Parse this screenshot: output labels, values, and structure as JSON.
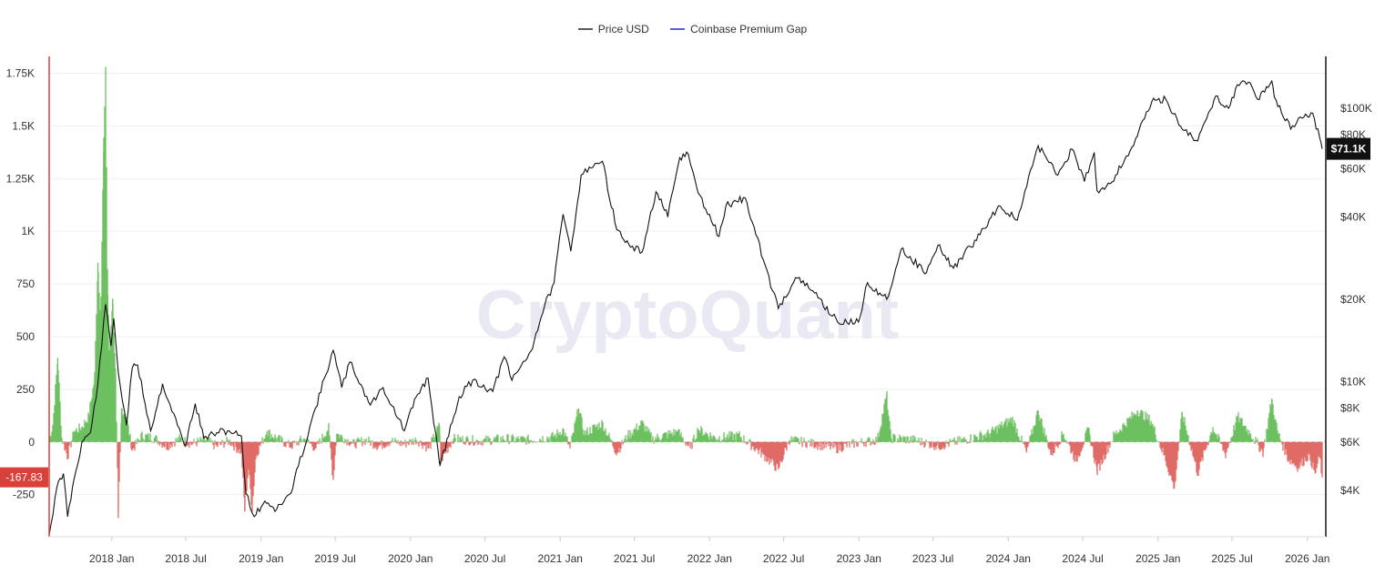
{
  "legend": {
    "items": [
      {
        "label": "Price USD",
        "color": "#555a6e"
      },
      {
        "label": "Coinbase Premium Gap",
        "color": "#5b5fd6"
      }
    ]
  },
  "watermark": "CryptoQuant",
  "colors": {
    "price_line": "#111111",
    "premium_positive": "#6cc05f",
    "premium_negative": "#e06b66",
    "left_axis": "#d9403a",
    "right_axis": "#111111",
    "grid": "#efefef"
  },
  "chart_data": {
    "type": "line",
    "left_axis": {
      "title": "",
      "ticks": [
        -250,
        0,
        250,
        500,
        750,
        1000,
        1250,
        1500,
        1750
      ],
      "tick_labels": [
        "-250",
        "0",
        "250",
        "500",
        "750",
        "1K",
        "1.25K",
        "1.5K",
        "1.75K"
      ],
      "ylim": [
        -450,
        1830
      ]
    },
    "right_axis": {
      "title": "",
      "scale": "log",
      "ticks": [
        4000,
        6000,
        8000,
        10000,
        20000,
        40000,
        60000,
        80000,
        100000
      ],
      "tick_labels": [
        "$4K",
        "$6K",
        "$8K",
        "$10K",
        "$20K",
        "$40K",
        "$60K",
        "$80K",
        "$100K"
      ],
      "ylim": [
        2700,
        155000
      ]
    },
    "x_axis": {
      "range": [
        "2017-08-01",
        "2026-02-15"
      ],
      "ticks": [
        "2018-01-01",
        "2018-07-01",
        "2019-01-01",
        "2019-07-01",
        "2020-01-01",
        "2020-07-01",
        "2021-01-01",
        "2021-07-01",
        "2022-01-01",
        "2022-07-01",
        "2023-01-01",
        "2023-07-01",
        "2024-01-01",
        "2024-07-01",
        "2025-01-01",
        "2025-07-01",
        "2026-01-01"
      ],
      "tick_labels": [
        "2018 Jan",
        "2018 Jul",
        "2019 Jan",
        "2019 Jul",
        "2020 Jan",
        "2020 Jul",
        "2021 Jan",
        "2021 Jul",
        "2022 Jan",
        "2022 Jul",
        "2023 Jan",
        "2023 Jul",
        "2024 Jan",
        "2024 Jul",
        "2025 Jan",
        "2025 Jul",
        "2026 Jan"
      ]
    },
    "current_values": {
      "premium_gap_label": "-167.83",
      "premium_gap": -167.83,
      "price_label": "$71.1K",
      "price": 71100
    },
    "series": [
      {
        "name": "Price USD",
        "axis": "right",
        "points": [
          [
            "2017-08-01",
            2750
          ],
          [
            "2017-08-20",
            4100
          ],
          [
            "2017-09-05",
            4600
          ],
          [
            "2017-09-15",
            3200
          ],
          [
            "2017-10-01",
            4400
          ],
          [
            "2017-10-20",
            6000
          ],
          [
            "2017-11-10",
            6500
          ],
          [
            "2017-11-28",
            9800
          ],
          [
            "2017-12-17",
            19200
          ],
          [
            "2017-12-30",
            13500
          ],
          [
            "2018-01-06",
            17000
          ],
          [
            "2018-01-17",
            10800
          ],
          [
            "2018-02-06",
            6900
          ],
          [
            "2018-02-20",
            11200
          ],
          [
            "2018-03-05",
            11500
          ],
          [
            "2018-04-06",
            6600
          ],
          [
            "2018-05-05",
            9800
          ],
          [
            "2018-06-29",
            5800
          ],
          [
            "2018-07-24",
            8300
          ],
          [
            "2018-08-14",
            6200
          ],
          [
            "2018-09-15",
            6500
          ],
          [
            "2018-10-15",
            6600
          ],
          [
            "2018-11-14",
            6300
          ],
          [
            "2018-11-25",
            3900
          ],
          [
            "2018-12-15",
            3200
          ],
          [
            "2019-01-10",
            3650
          ],
          [
            "2019-02-08",
            3400
          ],
          [
            "2019-03-15",
            3900
          ],
          [
            "2019-04-02",
            4900
          ],
          [
            "2019-05-14",
            8000
          ],
          [
            "2019-06-26",
            13000
          ],
          [
            "2019-07-17",
            9500
          ],
          [
            "2019-08-06",
            11800
          ],
          [
            "2019-09-25",
            8200
          ],
          [
            "2019-10-26",
            9500
          ],
          [
            "2019-12-17",
            6600
          ],
          [
            "2020-01-15",
            8800
          ],
          [
            "2020-02-13",
            10300
          ],
          [
            "2020-03-12",
            5000
          ],
          [
            "2020-03-13",
            4900
          ],
          [
            "2020-04-29",
            8800
          ],
          [
            "2020-06-01",
            10100
          ],
          [
            "2020-07-20",
            9200
          ],
          [
            "2020-08-17",
            12300
          ],
          [
            "2020-09-05",
            10100
          ],
          [
            "2020-10-21",
            12900
          ],
          [
            "2020-11-24",
            19000
          ],
          [
            "2020-12-17",
            23000
          ],
          [
            "2021-01-08",
            41000
          ],
          [
            "2021-01-27",
            30000
          ],
          [
            "2021-02-21",
            57000
          ],
          [
            "2021-03-13",
            61000
          ],
          [
            "2021-04-14",
            64000
          ],
          [
            "2021-05-19",
            36000
          ],
          [
            "2021-06-22",
            31000
          ],
          [
            "2021-07-20",
            29800
          ],
          [
            "2021-08-23",
            49500
          ],
          [
            "2021-09-21",
            40000
          ],
          [
            "2021-10-20",
            66000
          ],
          [
            "2021-11-10",
            68000
          ],
          [
            "2021-12-04",
            49000
          ],
          [
            "2022-01-24",
            34000
          ],
          [
            "2022-02-10",
            44000
          ],
          [
            "2022-03-29",
            47000
          ],
          [
            "2022-05-12",
            28000
          ],
          [
            "2022-06-18",
            18500
          ],
          [
            "2022-07-30",
            24000
          ],
          [
            "2022-09-10",
            21500
          ],
          [
            "2022-11-10",
            16500
          ],
          [
            "2022-12-31",
            16500
          ],
          [
            "2023-01-22",
            23000
          ],
          [
            "2023-03-10",
            20000
          ],
          [
            "2023-04-14",
            30500
          ],
          [
            "2023-06-15",
            25000
          ],
          [
            "2023-07-13",
            31500
          ],
          [
            "2023-08-20",
            26000
          ],
          [
            "2023-10-24",
            34500
          ],
          [
            "2023-12-08",
            44000
          ],
          [
            "2024-01-23",
            39000
          ],
          [
            "2024-03-14",
            73000
          ],
          [
            "2024-05-01",
            57000
          ],
          [
            "2024-06-05",
            71000
          ],
          [
            "2024-07-05",
            54000
          ],
          [
            "2024-07-29",
            69000
          ],
          [
            "2024-08-05",
            50000
          ],
          [
            "2024-09-06",
            53000
          ],
          [
            "2024-10-29",
            72000
          ],
          [
            "2024-12-17",
            106000
          ],
          [
            "2025-01-20",
            108000
          ],
          [
            "2025-02-25",
            86000
          ],
          [
            "2025-04-08",
            76000
          ],
          [
            "2025-05-22",
            111000
          ],
          [
            "2025-06-22",
            100000
          ],
          [
            "2025-07-14",
            122000
          ],
          [
            "2025-08-14",
            124000
          ],
          [
            "2025-09-01",
            108000
          ],
          [
            "2025-10-06",
            126000
          ],
          [
            "2025-10-12",
            110000
          ],
          [
            "2025-11-21",
            84000
          ],
          [
            "2025-12-10",
            92000
          ],
          [
            "2026-01-14",
            96000
          ],
          [
            "2026-01-31",
            78000
          ],
          [
            "2026-02-06",
            71100
          ]
        ]
      },
      {
        "name": "Coinbase Premium Gap",
        "axis": "left",
        "points": [
          [
            "2017-08-01",
            10
          ],
          [
            "2017-08-10",
            80
          ],
          [
            "2017-08-22",
            400
          ],
          [
            "2017-09-01",
            20
          ],
          [
            "2017-09-15",
            -70
          ],
          [
            "2017-10-01",
            50
          ],
          [
            "2017-10-20",
            70
          ],
          [
            "2017-11-05",
            120
          ],
          [
            "2017-11-20",
            300
          ],
          [
            "2017-11-28",
            850
          ],
          [
            "2017-12-05",
            600
          ],
          [
            "2017-12-12",
            1380
          ],
          [
            "2017-12-17",
            1780
          ],
          [
            "2017-12-22",
            700
          ],
          [
            "2017-12-26",
            430
          ],
          [
            "2018-01-03",
            680
          ],
          [
            "2018-01-10",
            350
          ],
          [
            "2018-01-17",
            -360
          ],
          [
            "2018-01-25",
            160
          ],
          [
            "2018-02-06",
            120
          ],
          [
            "2018-02-20",
            -40
          ],
          [
            "2018-03-15",
            30
          ],
          [
            "2018-04-15",
            20
          ],
          [
            "2018-05-15",
            -20
          ],
          [
            "2018-06-15",
            15
          ],
          [
            "2018-07-15",
            -10
          ],
          [
            "2018-08-15",
            10
          ],
          [
            "2018-09-15",
            -20
          ],
          [
            "2018-10-15",
            5
          ],
          [
            "2018-11-14",
            -50
          ],
          [
            "2018-11-22",
            -330
          ],
          [
            "2018-12-01",
            -120
          ],
          [
            "2018-12-10",
            -320
          ],
          [
            "2018-12-20",
            -60
          ],
          [
            "2019-01-15",
            50
          ],
          [
            "2019-02-15",
            10
          ],
          [
            "2019-03-15",
            -20
          ],
          [
            "2019-04-15",
            15
          ],
          [
            "2019-05-15",
            -30
          ],
          [
            "2019-06-15",
            70
          ],
          [
            "2019-06-26",
            -180
          ],
          [
            "2019-07-05",
            40
          ],
          [
            "2019-08-15",
            -10
          ],
          [
            "2019-09-15",
            10
          ],
          [
            "2019-10-15",
            -20
          ],
          [
            "2019-11-15",
            5
          ],
          [
            "2019-12-15",
            -10
          ],
          [
            "2020-01-15",
            10
          ],
          [
            "2020-02-15",
            -30
          ],
          [
            "2020-03-12",
            80
          ],
          [
            "2020-03-15",
            -90
          ],
          [
            "2020-04-15",
            15
          ],
          [
            "2020-06-15",
            5
          ],
          [
            "2020-08-15",
            15
          ],
          [
            "2020-10-15",
            10
          ],
          [
            "2020-12-15",
            25
          ],
          [
            "2021-01-08",
            60
          ],
          [
            "2021-01-25",
            -30
          ],
          [
            "2021-02-15",
            160
          ],
          [
            "2021-03-01",
            40
          ],
          [
            "2021-04-14",
            90
          ],
          [
            "2021-05-19",
            -50
          ],
          [
            "2021-06-15",
            30
          ],
          [
            "2021-07-20",
            90
          ],
          [
            "2021-08-15",
            15
          ],
          [
            "2021-10-15",
            50
          ],
          [
            "2021-11-15",
            -30
          ],
          [
            "2021-12-04",
            60
          ],
          [
            "2022-01-15",
            20
          ],
          [
            "2022-03-15",
            30
          ],
          [
            "2022-05-12",
            -60
          ],
          [
            "2022-06-18",
            -130
          ],
          [
            "2022-07-15",
            10
          ],
          [
            "2022-09-15",
            -10
          ],
          [
            "2022-11-10",
            -30
          ],
          [
            "2022-12-15",
            -10
          ],
          [
            "2023-02-15",
            10
          ],
          [
            "2023-03-10",
            225
          ],
          [
            "2023-03-20",
            20
          ],
          [
            "2023-05-15",
            10
          ],
          [
            "2023-07-15",
            -20
          ],
          [
            "2023-09-15",
            10
          ],
          [
            "2023-11-15",
            40
          ],
          [
            "2024-01-11",
            110
          ],
          [
            "2024-02-15",
            -50
          ],
          [
            "2024-03-14",
            150
          ],
          [
            "2024-04-15",
            -60
          ],
          [
            "2024-05-15",
            40
          ],
          [
            "2024-06-15",
            -90
          ],
          [
            "2024-07-15",
            60
          ],
          [
            "2024-08-05",
            -140
          ],
          [
            "2024-09-15",
            30
          ],
          [
            "2024-11-12",
            150
          ],
          [
            "2024-12-15",
            100
          ],
          [
            "2025-01-15",
            -60
          ],
          [
            "2025-02-10",
            -220
          ],
          [
            "2025-03-01",
            140
          ],
          [
            "2025-04-08",
            -150
          ],
          [
            "2025-05-15",
            70
          ],
          [
            "2025-06-15",
            -60
          ],
          [
            "2025-07-15",
            120
          ],
          [
            "2025-08-15",
            40
          ],
          [
            "2025-09-15",
            -50
          ],
          [
            "2025-10-06",
            205
          ],
          [
            "2025-10-20",
            50
          ],
          [
            "2025-11-15",
            -80
          ],
          [
            "2025-12-10",
            -120
          ],
          [
            "2026-01-05",
            -60
          ],
          [
            "2026-01-20",
            -150
          ],
          [
            "2026-01-31",
            -70
          ],
          [
            "2026-02-06",
            -167.83
          ]
        ]
      }
    ]
  }
}
